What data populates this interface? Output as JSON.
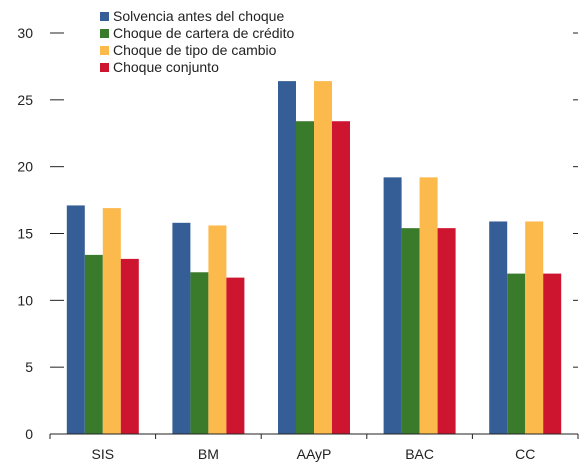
{
  "chart_data": {
    "type": "bar",
    "title": "",
    "xlabel": "",
    "ylabel": "",
    "ylim": [
      0,
      30
    ],
    "yticks": [
      0,
      5,
      10,
      15,
      20,
      25,
      30
    ],
    "categories": [
      "SIS",
      "BM",
      "AAyP",
      "BAC",
      "CC"
    ],
    "legend_position": "top-left",
    "series": [
      {
        "name": "Solvencia antes del choque",
        "color": "#355e96",
        "values": [
          17.1,
          15.8,
          26.4,
          19.2,
          15.9
        ]
      },
      {
        "name": "Choque de cartera de crédito",
        "color": "#3a7b2b",
        "values": [
          13.4,
          12.1,
          23.4,
          15.4,
          12.0
        ]
      },
      {
        "name": "Choque de tipo de cambio",
        "color": "#fcb94c",
        "values": [
          16.9,
          15.6,
          26.4,
          19.2,
          15.9
        ]
      },
      {
        "name": "Choque conjunto",
        "color": "#cd1530",
        "values": [
          13.1,
          11.7,
          23.4,
          15.4,
          12.0
        ]
      }
    ]
  }
}
